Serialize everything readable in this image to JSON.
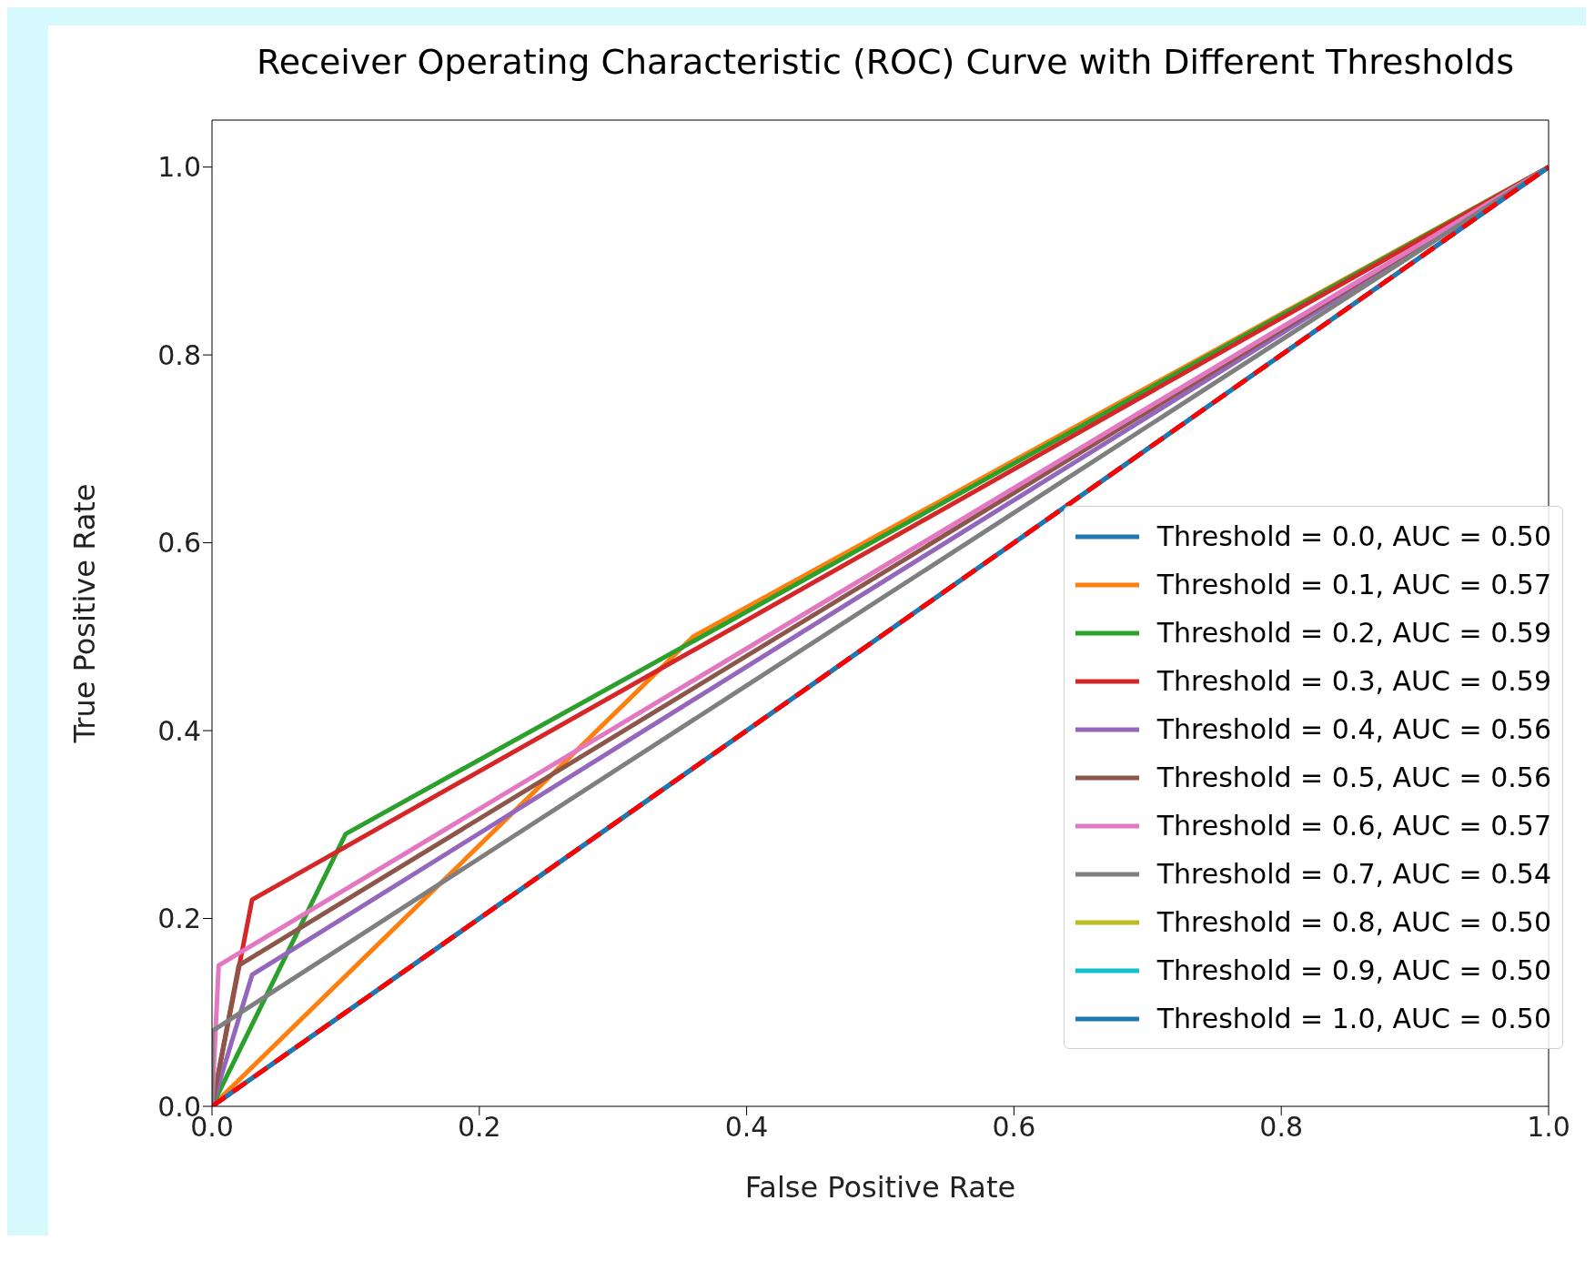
{
  "chart_data": {
    "type": "line",
    "title": "Receiver Operating Characteristic (ROC) Curve with Different Thresholds",
    "xlabel": "False Positive Rate",
    "ylabel": "True Positive Rate",
    "xlim": [
      0,
      1
    ],
    "ylim": [
      0,
      1.05
    ],
    "xticks": [
      {
        "value": 0,
        "label": "0.0"
      },
      {
        "value": 0.2,
        "label": "0.2"
      },
      {
        "value": 0.4,
        "label": "0.4"
      },
      {
        "value": 0.6,
        "label": "0.6"
      },
      {
        "value": 0.8,
        "label": "0.8"
      },
      {
        "value": 1,
        "label": "1.0"
      }
    ],
    "yticks": [
      {
        "value": 0,
        "label": "0.0"
      },
      {
        "value": 0.2,
        "label": "0.2"
      },
      {
        "value": 0.4,
        "label": "0.4"
      },
      {
        "value": 0.6,
        "label": "0.6"
      },
      {
        "value": 0.8,
        "label": "0.8"
      },
      {
        "value": 1,
        "label": "1.0"
      }
    ],
    "grid": false,
    "legend": "bottom right",
    "marker": "none",
    "line_style": "solid",
    "series": [
      {
        "name": "Threshold = 0.0, AUC = 0.50",
        "color": "#1f77b4",
        "x": [
          0,
          1
        ],
        "values": [
          0,
          1
        ]
      },
      {
        "name": "Threshold = 0.1, AUC = 0.57",
        "color": "#ff7f0e",
        "x": [
          0,
          0.36,
          1
        ],
        "values": [
          0,
          0.5,
          1
        ]
      },
      {
        "name": "Threshold = 0.2, AUC = 0.59",
        "color": "#2ca02c",
        "x": [
          0,
          0.1,
          1
        ],
        "values": [
          0,
          0.29,
          1
        ]
      },
      {
        "name": "Threshold = 0.3, AUC = 0.59",
        "color": "#d62728",
        "x": [
          0,
          0.03,
          1
        ],
        "values": [
          0,
          0.22,
          1
        ]
      },
      {
        "name": "Threshold = 0.4, AUC = 0.56",
        "color": "#9467bd",
        "x": [
          0,
          0.03,
          1
        ],
        "values": [
          0,
          0.14,
          1
        ]
      },
      {
        "name": "Threshold = 0.5, AUC = 0.56",
        "color": "#8c564b",
        "x": [
          0,
          0.02,
          1
        ],
        "values": [
          0,
          0.15,
          1
        ]
      },
      {
        "name": "Threshold = 0.6, AUC = 0.57",
        "color": "#e377c2",
        "x": [
          0,
          0.005,
          1
        ],
        "values": [
          0,
          0.15,
          1
        ]
      },
      {
        "name": "Threshold = 0.7, AUC = 0.54",
        "color": "#7f7f7f",
        "x": [
          0,
          0,
          1
        ],
        "values": [
          0,
          0.08,
          1
        ]
      },
      {
        "name": "Threshold = 0.8, AUC = 0.50",
        "color": "#bcbd22"
      },
      {
        "name": "Threshold = 0.9, AUC = 0.50",
        "color": "#17becf"
      },
      {
        "name": "Threshold = 1.0, AUC = 0.50",
        "color": "#1f77b4",
        "x": [
          0,
          1
        ],
        "values": [
          0,
          1
        ]
      },
      {
        "color": "#ff0000",
        "line_style": "dashed",
        "x": [
          0,
          1
        ],
        "values": [
          0,
          1
        ]
      }
    ]
  }
}
